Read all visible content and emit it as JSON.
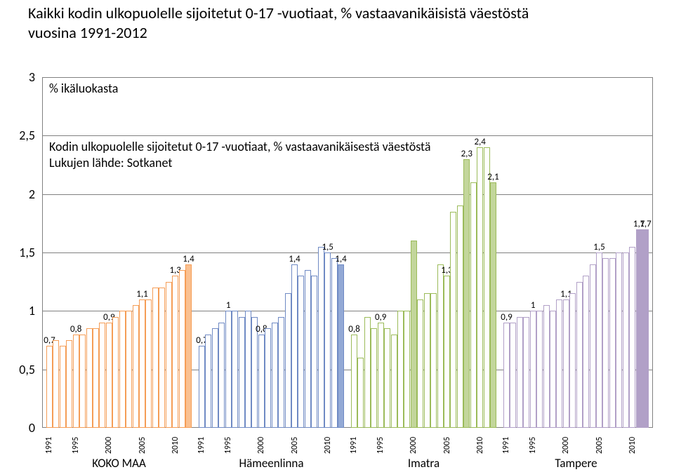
{
  "title_line1": "Kaikki kodin ulkopuolelle sijoitetut 0-17 -vuotiaat, % vastaavanikäisistä väestöstä",
  "title_line2": "vuosina 1991-2012",
  "axis_note": "% ikäluokasta",
  "subtitle_line1": "Kodin ulkopuolelle sijoitetut 0-17 -vuotiaat, % vastaavanikäisestä väestöstä",
  "subtitle_line2": "Lukujen lähde: Sotkanet",
  "chart": {
    "type": "bar",
    "ylim": [
      0,
      3
    ],
    "ytick_step": 0.5,
    "background_color": "#ffffff",
    "grid_color": "#808080",
    "label_fontsize": 18,
    "bar_border_width": 1,
    "group_colors": {
      "KOKO MAA": {
        "fill": "#ffffff",
        "border": "#f59d56",
        "highlight": "#fac090"
      },
      "Hämeenlinna": {
        "fill": "#ffffff",
        "border": "#6f8ac4",
        "highlight": "#93a9d5"
      },
      "Imatra": {
        "fill": "#ffffff",
        "border": "#9bbb59",
        "highlight": "#c3d69b"
      },
      "Tampere": {
        "fill": "#ffffff",
        "border": "#b1a0c7",
        "highlight": "#b1a0c7"
      }
    },
    "groups": [
      {
        "name": "KOKO MAA",
        "years": [
          "1991",
          "1992",
          "1993",
          "1994",
          "1995",
          "1996",
          "1997",
          "1998",
          "1999",
          "2000",
          "2001",
          "2002",
          "2003",
          "2004",
          "2005",
          "2006",
          "2007",
          "2008",
          "2009",
          "2010",
          "2011",
          "2012"
        ],
        "values": [
          0.7,
          0.75,
          0.7,
          0.75,
          0.8,
          0.8,
          0.85,
          0.85,
          0.9,
          0.9,
          0.95,
          1.0,
          1.0,
          1.05,
          1.1,
          1.1,
          1.2,
          1.2,
          1.25,
          1.3,
          1.35,
          1.4
        ],
        "show_labels": {
          "0": "0,7",
          "4": "0,8",
          "9": "0,9",
          "14": "1,1",
          "19": "1,3",
          "21": "1,4"
        },
        "highlight_idx": [
          21
        ]
      },
      {
        "name": "Hämeenlinna",
        "years": [
          "1991",
          "1992",
          "1993",
          "1994",
          "1995",
          "1996",
          "1997",
          "1998",
          "1999",
          "2000",
          "2001",
          "2002",
          "2003",
          "2004",
          "2005",
          "2006",
          "2007",
          "2008",
          "2009",
          "2010",
          "2011",
          "2012"
        ],
        "values": [
          0.7,
          0.8,
          0.85,
          0.9,
          1.0,
          1.0,
          0.95,
          1.0,
          0.95,
          0.8,
          0.85,
          0.9,
          0.95,
          1.15,
          1.4,
          1.3,
          1.35,
          1.3,
          1.55,
          1.5,
          1.45,
          1.4
        ],
        "show_labels": {
          "0": "0,7",
          "4": "1",
          "9": "0,8",
          "14": "1,4",
          "19": "1,5",
          "21": "1,4"
        },
        "highlight_idx": [
          21
        ]
      },
      {
        "name": "Imatra",
        "years": [
          "1991",
          "1992",
          "1993",
          "1994",
          "1995",
          "1996",
          "1997",
          "1998",
          "1999",
          "2000",
          "2001",
          "2002",
          "2003",
          "2004",
          "2005",
          "2006",
          "2007",
          "2008",
          "2009",
          "2010",
          "2011",
          "2012"
        ],
        "values": [
          0.8,
          0.6,
          0.95,
          0.85,
          0.9,
          0.85,
          0.8,
          1.0,
          1.0,
          1.6,
          1.1,
          1.15,
          1.15,
          1.4,
          1.3,
          1.85,
          1.9,
          2.3,
          2.1,
          2.4,
          2.4,
          2.1
        ],
        "show_labels": {
          "0": "0,8",
          "4": "0,9",
          "14": "1,3",
          "17": "2,3",
          "19": "2,4",
          "21": "2,1"
        },
        "highlight_idx": [
          9,
          17,
          21
        ]
      },
      {
        "name": "Tampere",
        "years": [
          "1991",
          "1992",
          "1993",
          "1994",
          "1995",
          "1996",
          "1997",
          "1998",
          "1999",
          "2000",
          "2001",
          "2002",
          "2003",
          "2004",
          "2005",
          "2006",
          "2007",
          "2008",
          "2009",
          "2010",
          "2011",
          "2012"
        ],
        "values": [
          0.9,
          0.9,
          0.95,
          0.95,
          1.0,
          1.0,
          1.05,
          1.0,
          1.1,
          1.1,
          1.15,
          1.25,
          1.3,
          1.4,
          1.5,
          1.45,
          1.45,
          1.5,
          1.5,
          1.55,
          1.7,
          1.7
        ],
        "show_labels": {
          "0": "0,9",
          "4": "1",
          "9": "1,1",
          "14": "1,5",
          "20": "1,7",
          "21": "1,7"
        },
        "highlight_idx": [
          20,
          21
        ]
      }
    ]
  }
}
